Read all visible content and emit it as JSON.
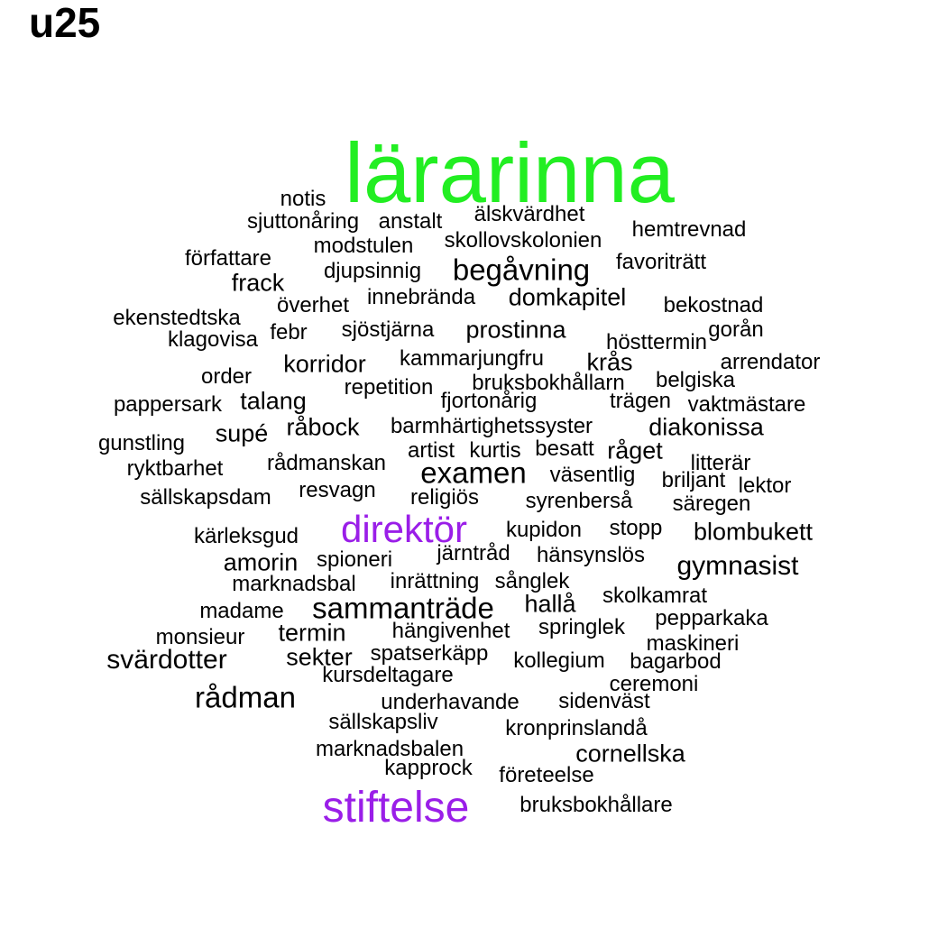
{
  "title": "u25",
  "colors": {
    "default": "#000000",
    "green": "#22ee22",
    "purple": "#9a1ee8"
  },
  "words": [
    {
      "text": "lärarinna",
      "color": "green",
      "weight": 10
    },
    {
      "text": "notis"
    },
    {
      "text": "älskvärdhet"
    },
    {
      "text": "sjuttonåring"
    },
    {
      "text": "anstalt"
    },
    {
      "text": "hemtrevnad"
    },
    {
      "text": "skollovskolonien"
    },
    {
      "text": "modstulen"
    },
    {
      "text": "författare"
    },
    {
      "text": "favoriträtt"
    },
    {
      "text": "begåvning",
      "weight": 2
    },
    {
      "text": "djupsinnig"
    },
    {
      "text": "frack"
    },
    {
      "text": "domkapitel"
    },
    {
      "text": "innebrända"
    },
    {
      "text": "överhet"
    },
    {
      "text": "bekostnad"
    },
    {
      "text": "ekenstedtska"
    },
    {
      "text": "prostinna"
    },
    {
      "text": "sjöstjärna"
    },
    {
      "text": "febr"
    },
    {
      "text": "gorån"
    },
    {
      "text": "klagovisa"
    },
    {
      "text": "hösttermin"
    },
    {
      "text": "kammarjungfru"
    },
    {
      "text": "krås"
    },
    {
      "text": "arrendator"
    },
    {
      "text": "korridor"
    },
    {
      "text": "order"
    },
    {
      "text": "belgiska"
    },
    {
      "text": "bruksbokhållarn"
    },
    {
      "text": "repetition"
    },
    {
      "text": "talang"
    },
    {
      "text": "pappersark"
    },
    {
      "text": "fjortonårig"
    },
    {
      "text": "trägen"
    },
    {
      "text": "vaktmästare"
    },
    {
      "text": "barmhärtighetssyster"
    },
    {
      "text": "råbock"
    },
    {
      "text": "diakonissa"
    },
    {
      "text": "supé"
    },
    {
      "text": "gunstling"
    },
    {
      "text": "artist"
    },
    {
      "text": "kurtis"
    },
    {
      "text": "besatt"
    },
    {
      "text": "råget"
    },
    {
      "text": "litterär"
    },
    {
      "text": "ryktbarhet"
    },
    {
      "text": "rådmanskan"
    },
    {
      "text": "examen",
      "weight": 2
    },
    {
      "text": "väsentlig"
    },
    {
      "text": "briljant"
    },
    {
      "text": "lektor"
    },
    {
      "text": "sällskapsdam"
    },
    {
      "text": "resvagn"
    },
    {
      "text": "religiös"
    },
    {
      "text": "syrenberså"
    },
    {
      "text": "säregen"
    },
    {
      "text": "direktör",
      "color": "purple",
      "weight": 4
    },
    {
      "text": "kupidon"
    },
    {
      "text": "stopp"
    },
    {
      "text": "blombukett"
    },
    {
      "text": "kärleksgud"
    },
    {
      "text": "järntråd"
    },
    {
      "text": "hänsynslös"
    },
    {
      "text": "amorin"
    },
    {
      "text": "spioneri"
    },
    {
      "text": "gymnasist"
    },
    {
      "text": "marknadsbal"
    },
    {
      "text": "inrättning"
    },
    {
      "text": "sånglek"
    },
    {
      "text": "skolkamrat"
    },
    {
      "text": "madame"
    },
    {
      "text": "sammanträde",
      "weight": 2
    },
    {
      "text": "hallå"
    },
    {
      "text": "pepparkaka"
    },
    {
      "text": "termin"
    },
    {
      "text": "monsieur"
    },
    {
      "text": "hängivenhet"
    },
    {
      "text": "springlek"
    },
    {
      "text": "maskineri"
    },
    {
      "text": "svärdotter"
    },
    {
      "text": "sekter"
    },
    {
      "text": "spatserkäpp"
    },
    {
      "text": "kollegium"
    },
    {
      "text": "bagarbod"
    },
    {
      "text": "kursdeltagare"
    },
    {
      "text": "ceremoni"
    },
    {
      "text": "rådman",
      "weight": 2
    },
    {
      "text": "underhavande"
    },
    {
      "text": "sidenväst"
    },
    {
      "text": "sällskapsliv"
    },
    {
      "text": "kronprinslandå"
    },
    {
      "text": "marknadsbalen"
    },
    {
      "text": "cornellska"
    },
    {
      "text": "kapprock"
    },
    {
      "text": "företeelse"
    },
    {
      "text": "stiftelse",
      "color": "purple",
      "weight": 4
    },
    {
      "text": "bruksbokhållare"
    }
  ]
}
